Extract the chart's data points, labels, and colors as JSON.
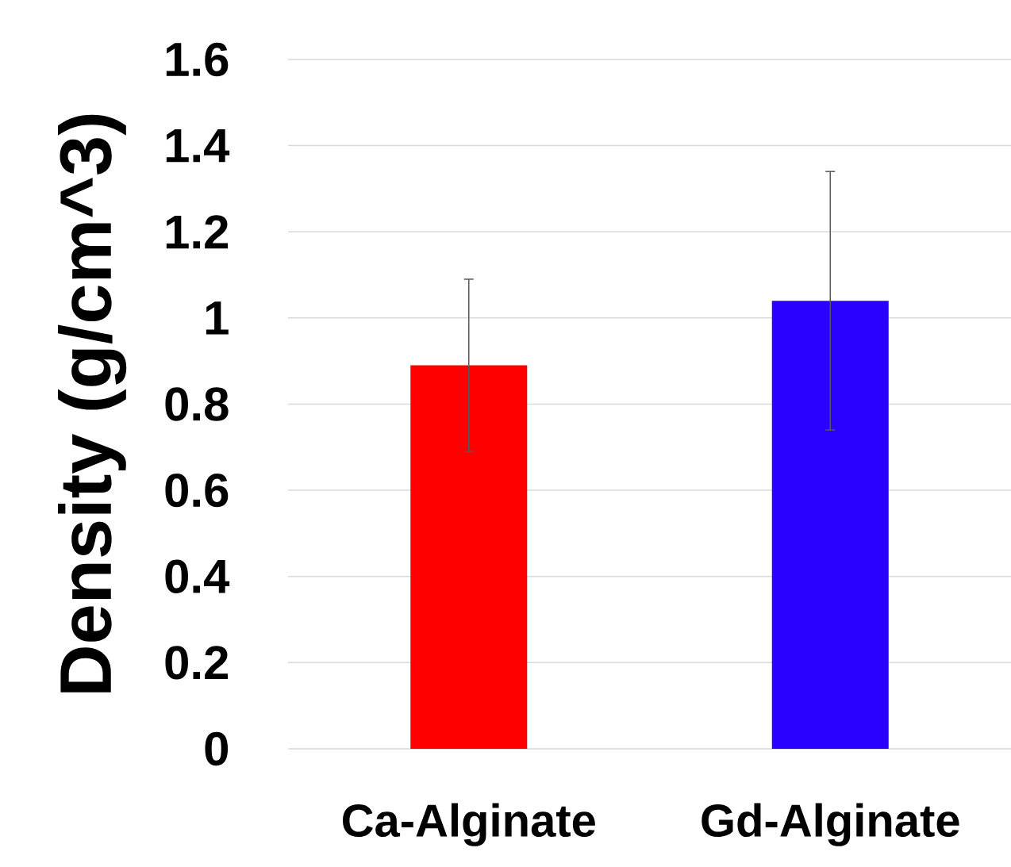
{
  "chart_data": {
    "type": "bar",
    "ylabel": "Density (g/cm^3)",
    "categories": [
      "Ca-Alginate",
      "Gd-Alginate"
    ],
    "values": [
      0.89,
      1.04
    ],
    "colors": [
      "#ff0000",
      "#2a00ff"
    ],
    "errors": [
      0.2,
      0.3
    ],
    "ylim": [
      0,
      1.6
    ],
    "yticks": [
      0,
      0.2,
      0.4,
      0.6,
      0.8,
      1,
      1.2,
      1.4,
      1.6
    ],
    "grid": "y"
  }
}
